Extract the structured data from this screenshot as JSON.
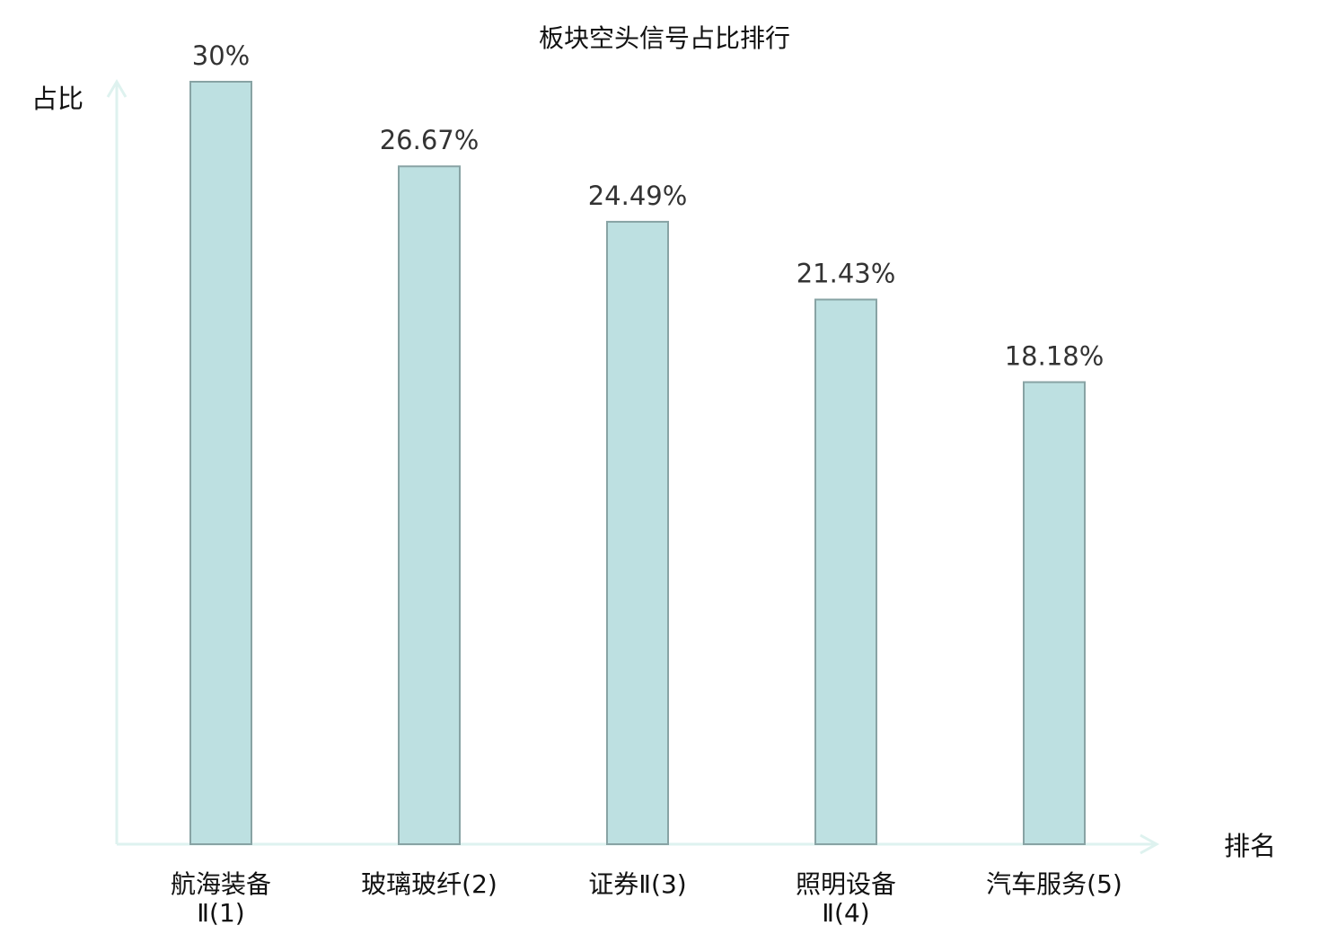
{
  "chart_data": {
    "type": "bar",
    "title": "板块空头信号占比排行",
    "ylabel": "占比",
    "xlabel": "排名",
    "ylim": [
      0,
      30
    ],
    "grid": false,
    "categories": [
      [
        "航海装备",
        "Ⅱ(1)"
      ],
      [
        "玻璃玻纤(2)"
      ],
      [
        "证券Ⅱ(3)"
      ],
      [
        "照明设备",
        "Ⅱ(4)"
      ],
      [
        "汽车服务(5)"
      ]
    ],
    "values": [
      30,
      26.67,
      24.49,
      21.43,
      18.18
    ],
    "value_labels": [
      "30%",
      "26.67%",
      "24.49%",
      "21.43%",
      "18.18%"
    ],
    "highlight_index": 3
  },
  "colors": {
    "bar_fill": "#bde0e1",
    "bar_stroke": "#88a3a4",
    "axis": "#def2ef",
    "highlight": "#e0201b",
    "text": "#111111",
    "value_text": "#333333"
  }
}
